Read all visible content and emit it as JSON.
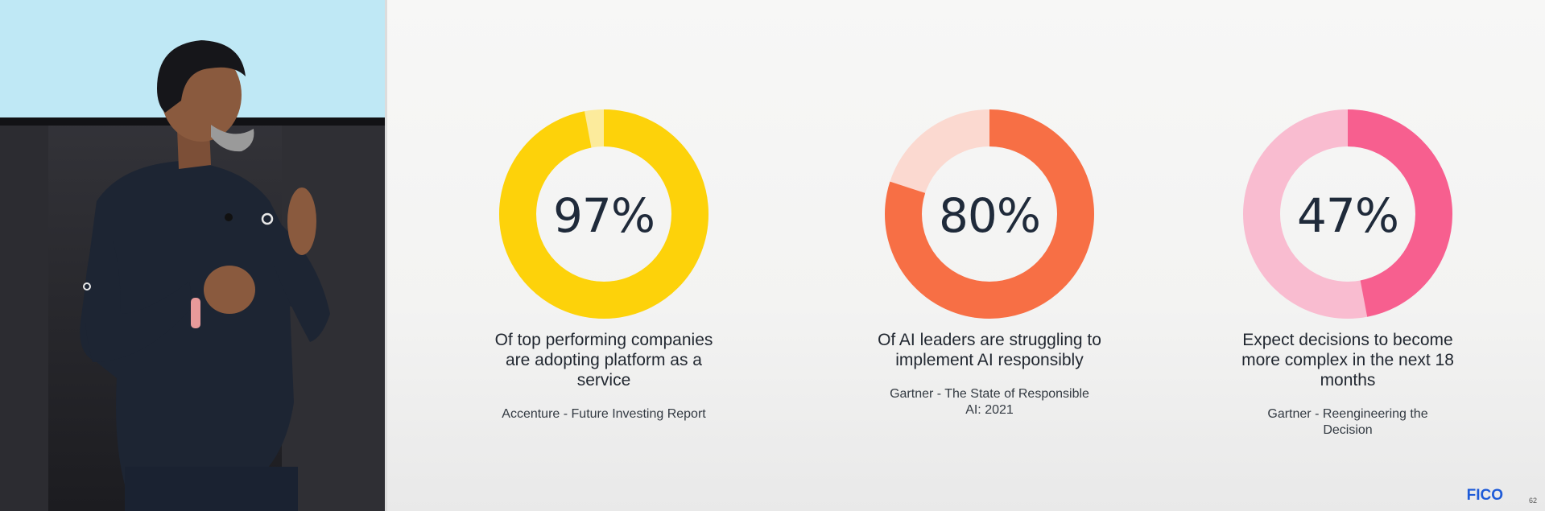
{
  "slide": {
    "stats": [
      {
        "value": "97%",
        "fraction": 0.97,
        "label": "Of top performing companies are adopting platform as a service",
        "source": "Accenture -  Future Investing Report",
        "color_main": "#FDD20A",
        "color_rest": "#FCEB9C"
      },
      {
        "value": "80%",
        "fraction": 0.8,
        "label": "Of AI leaders are struggling to implement AI responsibly",
        "source": "Gartner - The State of Responsible AI: 2021",
        "color_main": "#F76F45",
        "color_rest": "#FBD9D0"
      },
      {
        "value": "47%",
        "fraction": 0.47,
        "label": "Expect decisions to become more complex in the next 18 months",
        "source": "Gartner - Reengineering the Decision",
        "color_main": "#F75F8F",
        "color_rest": "#F9BCD0"
      }
    ],
    "logo_text": "FICO",
    "page_number": "62"
  },
  "video": {
    "shirt_color": "#1d2533",
    "skin_color": "#8a5a3e"
  }
}
